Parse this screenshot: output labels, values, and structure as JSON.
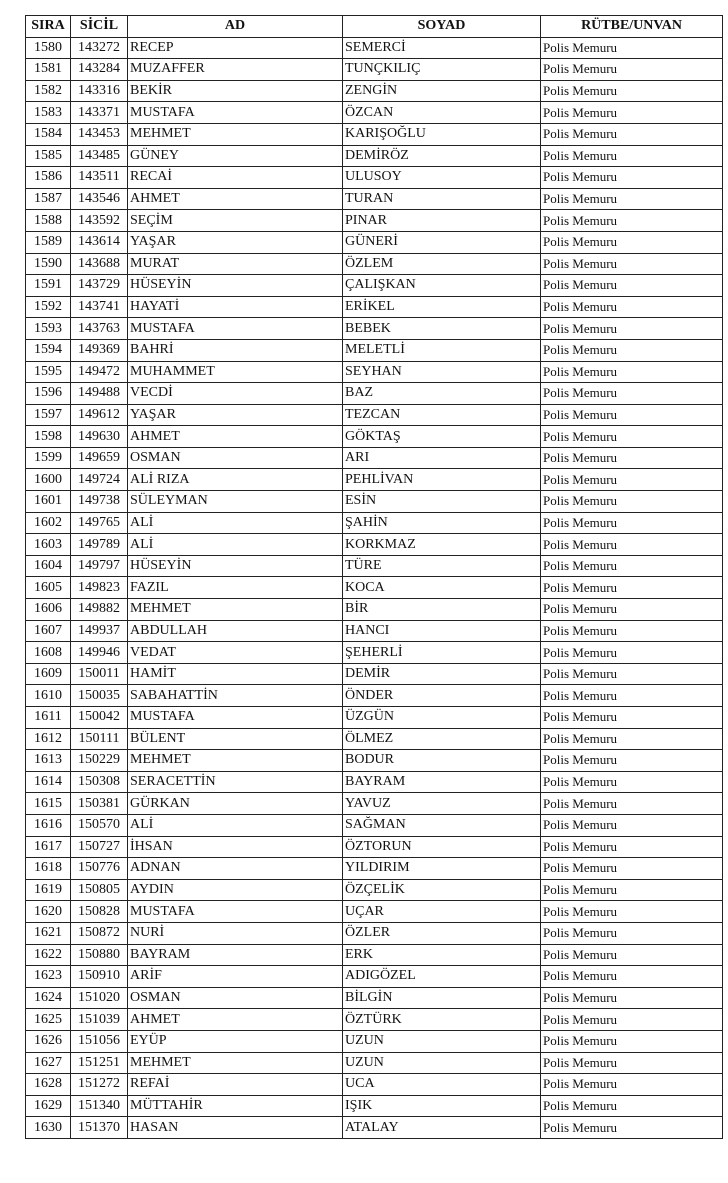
{
  "headers": [
    "SIRA",
    "SİCİL",
    "AD",
    "SOYAD",
    "RÜTBE/UNVAN"
  ],
  "rows": [
    [
      "1580",
      "143272",
      "RECEP",
      "SEMERCİ",
      "Polis Memuru"
    ],
    [
      "1581",
      "143284",
      "MUZAFFER",
      "TUNÇKILIÇ",
      "Polis Memuru"
    ],
    [
      "1582",
      "143316",
      "BEKİR",
      "ZENGİN",
      "Polis Memuru"
    ],
    [
      "1583",
      "143371",
      "MUSTAFA",
      "ÖZCAN",
      "Polis Memuru"
    ],
    [
      "1584",
      "143453",
      "MEHMET",
      "KARIŞOĞLU",
      "Polis Memuru"
    ],
    [
      "1585",
      "143485",
      "GÜNEY",
      "DEMİRÖZ",
      "Polis Memuru"
    ],
    [
      "1586",
      "143511",
      "RECAİ",
      "ULUSOY",
      "Polis Memuru"
    ],
    [
      "1587",
      "143546",
      "AHMET",
      "TURAN",
      "Polis Memuru"
    ],
    [
      "1588",
      "143592",
      "SEÇİM",
      "PINAR",
      "Polis Memuru"
    ],
    [
      "1589",
      "143614",
      "YAŞAR",
      "GÜNERİ",
      "Polis Memuru"
    ],
    [
      "1590",
      "143688",
      "MURAT",
      "ÖZLEM",
      "Polis Memuru"
    ],
    [
      "1591",
      "143729",
      "HÜSEYİN",
      "ÇALIŞKAN",
      "Polis Memuru"
    ],
    [
      "1592",
      "143741",
      "HAYATİ",
      "ERİKEL",
      "Polis Memuru"
    ],
    [
      "1593",
      "143763",
      "MUSTAFA",
      "BEBEK",
      "Polis Memuru"
    ],
    [
      "1594",
      "149369",
      "BAHRİ",
      "MELETLİ",
      "Polis Memuru"
    ],
    [
      "1595",
      "149472",
      "MUHAMMET",
      "SEYHAN",
      "Polis Memuru"
    ],
    [
      "1596",
      "149488",
      "VECDİ",
      "BAZ",
      "Polis Memuru"
    ],
    [
      "1597",
      "149612",
      "YAŞAR",
      "TEZCAN",
      "Polis Memuru"
    ],
    [
      "1598",
      "149630",
      "AHMET",
      "GÖKTAŞ",
      "Polis Memuru"
    ],
    [
      "1599",
      "149659",
      "OSMAN",
      "ARI",
      "Polis Memuru"
    ],
    [
      "1600",
      "149724",
      "ALİ RIZA",
      "PEHLİVAN",
      "Polis Memuru"
    ],
    [
      "1601",
      "149738",
      "SÜLEYMAN",
      "ESİN",
      "Polis Memuru"
    ],
    [
      "1602",
      "149765",
      "ALİ",
      "ŞAHİN",
      "Polis Memuru"
    ],
    [
      "1603",
      "149789",
      "ALİ",
      "KORKMAZ",
      "Polis Memuru"
    ],
    [
      "1604",
      "149797",
      "HÜSEYİN",
      "TÜRE",
      "Polis Memuru"
    ],
    [
      "1605",
      "149823",
      "FAZIL",
      "KOCA",
      "Polis Memuru"
    ],
    [
      "1606",
      "149882",
      "MEHMET",
      "BİR",
      "Polis Memuru"
    ],
    [
      "1607",
      "149937",
      "ABDULLAH",
      "HANCI",
      "Polis Memuru"
    ],
    [
      "1608",
      "149946",
      "VEDAT",
      "ŞEHERLİ",
      "Polis Memuru"
    ],
    [
      "1609",
      "150011",
      "HAMİT",
      "DEMİR",
      "Polis Memuru"
    ],
    [
      "1610",
      "150035",
      "SABAHATTİN",
      "ÖNDER",
      "Polis Memuru"
    ],
    [
      "1611",
      "150042",
      "MUSTAFA",
      "ÜZGÜN",
      "Polis Memuru"
    ],
    [
      "1612",
      "150111",
      "BÜLENT",
      "ÖLMEZ",
      "Polis Memuru"
    ],
    [
      "1613",
      "150229",
      "MEHMET",
      "BODUR",
      "Polis Memuru"
    ],
    [
      "1614",
      "150308",
      "SERACETTİN",
      "BAYRAM",
      "Polis Memuru"
    ],
    [
      "1615",
      "150381",
      "GÜRKAN",
      "YAVUZ",
      "Polis Memuru"
    ],
    [
      "1616",
      "150570",
      "ALİ",
      "SAĞMAN",
      "Polis Memuru"
    ],
    [
      "1617",
      "150727",
      "İHSAN",
      "ÖZTORUN",
      "Polis Memuru"
    ],
    [
      "1618",
      "150776",
      "ADNAN",
      "YILDIRIM",
      "Polis Memuru"
    ],
    [
      "1619",
      "150805",
      "AYDIN",
      "ÖZÇELİK",
      "Polis Memuru"
    ],
    [
      "1620",
      "150828",
      "MUSTAFA",
      "UÇAR",
      "Polis Memuru"
    ],
    [
      "1621",
      "150872",
      "NURİ",
      "ÖZLER",
      "Polis Memuru"
    ],
    [
      "1622",
      "150880",
      "BAYRAM",
      "ERK",
      "Polis Memuru"
    ],
    [
      "1623",
      "150910",
      "ARİF",
      "ADIGÖZEL",
      "Polis Memuru"
    ],
    [
      "1624",
      "151020",
      "OSMAN",
      "BİLGİN",
      "Polis Memuru"
    ],
    [
      "1625",
      "151039",
      "AHMET",
      "ÖZTÜRK",
      "Polis Memuru"
    ],
    [
      "1626",
      "151056",
      "EYÜP",
      "UZUN",
      "Polis Memuru"
    ],
    [
      "1627",
      "151251",
      "MEHMET",
      "UZUN",
      "Polis Memuru"
    ],
    [
      "1628",
      "151272",
      "REFAİ",
      "UCA",
      "Polis Memuru"
    ],
    [
      "1629",
      "151340",
      "MÜTTAHİR",
      "IŞIK",
      "Polis Memuru"
    ],
    [
      "1630",
      "151370",
      "HASAN",
      "ATALAY",
      "Polis Memuru"
    ]
  ]
}
